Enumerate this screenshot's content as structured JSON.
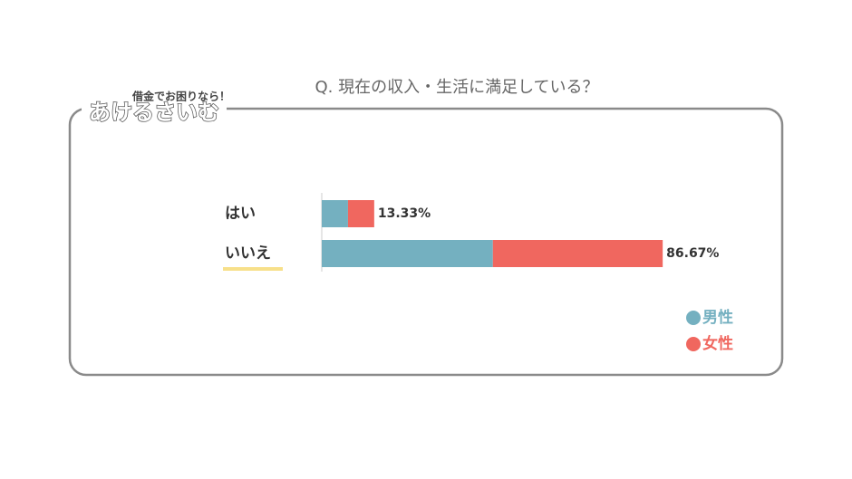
{
  "logo": {
    "tagline": "借金でお困りなら！",
    "name": "あけるさいむ"
  },
  "chart_data": {
    "type": "stacked-bar-horizontal",
    "title": "Q. 現在の収入・生活に満足している？",
    "categories": [
      "はい",
      "いいえ"
    ],
    "series": [
      {
        "name": "男性",
        "color": "#74b0c0",
        "values": [
          6.67,
          43.5
        ]
      },
      {
        "name": "女性",
        "color": "#f0675f",
        "values": [
          6.66,
          43.17
        ]
      }
    ],
    "totals": [
      13.33,
      86.67
    ],
    "total_labels": [
      "13.33%",
      "86.67%"
    ],
    "xlim": [
      0,
      100
    ],
    "legend": "bottom-right"
  }
}
